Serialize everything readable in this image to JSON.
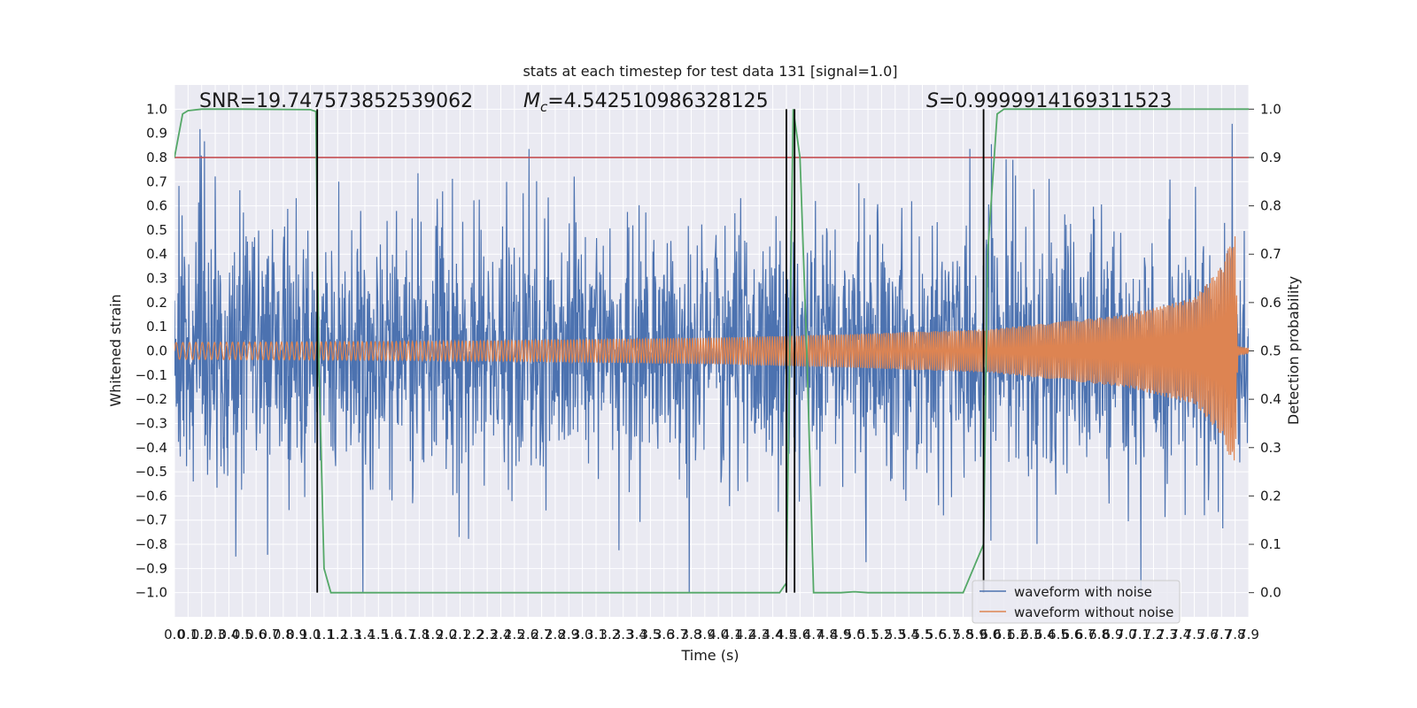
{
  "chart_data": {
    "type": "line",
    "title": "stats at each timestep for test data 131 [signal=1.0]",
    "xlabel": "Time (s)",
    "ylabel_left": "Whitened strain",
    "ylabel_right": "Detection probability",
    "xlim": [
      0.0,
      7.9
    ],
    "ylim_left": [
      -1.1,
      1.1
    ],
    "ylim_right": [
      -0.05,
      1.05
    ],
    "x_ticks": [
      "0.0",
      "0.1",
      "0.2",
      "0.3",
      "0.4",
      "0.5",
      "0.6",
      "0.7",
      "0.8",
      "0.9",
      "1.0",
      "1.1",
      "1.2",
      "1.3",
      "1.4",
      "1.5",
      "1.6",
      "1.7",
      "1.8",
      "1.9",
      "2.0",
      "2.1",
      "2.2",
      "2.3",
      "2.4",
      "2.5",
      "2.6",
      "2.7",
      "2.8",
      "2.9",
      "3.0",
      "3.1",
      "3.2",
      "3.3",
      "3.4",
      "3.5",
      "3.6",
      "3.7",
      "3.8",
      "3.9",
      "4.0",
      "4.1",
      "4.2",
      "4.3",
      "4.4",
      "4.5",
      "4.6",
      "4.7",
      "4.8",
      "4.9",
      "5.0",
      "5.1",
      "5.2",
      "5.3",
      "5.4",
      "5.5",
      "5.6",
      "5.7",
      "5.8",
      "5.9",
      "6.0",
      "6.1",
      "6.2",
      "6.3",
      "6.4",
      "6.5",
      "6.6",
      "6.7",
      "6.8",
      "6.9",
      "7.0",
      "7.1",
      "7.2",
      "7.3",
      "7.4",
      "7.5",
      "7.6",
      "7.7",
      "7.8",
      "7.9"
    ],
    "y_ticks_left": [
      "1.0",
      "0.9",
      "0.8",
      "0.7",
      "0.6",
      "0.5",
      "0.4",
      "0.3",
      "0.2",
      "0.1",
      "0.0",
      "−0.1",
      "−0.2",
      "−0.3",
      "−0.4",
      "−0.5",
      "−0.6",
      "−0.7",
      "−0.8",
      "−0.9",
      "−1.0"
    ],
    "y_ticks_right": [
      "1.0",
      "0.9",
      "0.8",
      "0.7",
      "0.6",
      "0.5",
      "0.4",
      "0.3",
      "0.2",
      "0.1",
      "0.0"
    ],
    "annotations": {
      "snr": "SNR=19.747573852539062",
      "mc": "=4.542510986328125",
      "mc_symbol": "M",
      "mc_sub": "c",
      "s": "=0.9999914169311523",
      "s_symbol": "S"
    },
    "threshold": 0.9,
    "vertical_lines": [
      1.05,
      4.5,
      4.56,
      5.95
    ],
    "series": [
      {
        "name": "waveform with noise",
        "color": "#4c72b0",
        "noise_amplitude": 0.45,
        "peak_range": [
          -1.0,
          0.99
        ]
      },
      {
        "name": "waveform without noise",
        "color": "#dd8452",
        "envelope": {
          "x": [
            0.0,
            2.0,
            4.0,
            5.0,
            6.0,
            7.0,
            7.5,
            7.7,
            7.8,
            7.82,
            7.9
          ],
          "y": [
            0.035,
            0.04,
            0.055,
            0.07,
            0.09,
            0.15,
            0.22,
            0.35,
            0.5,
            0.02,
            0.01
          ]
        }
      },
      {
        "name": "Detection probability",
        "color": "#55a868",
        "axis": "right",
        "x": [
          0.0,
          0.06,
          0.1,
          0.2,
          0.5,
          1.0,
          1.04,
          1.06,
          1.1,
          1.15,
          1.5,
          2.0,
          3.0,
          4.0,
          4.45,
          4.5,
          4.53,
          4.55,
          4.6,
          4.65,
          4.7,
          4.8,
          4.9,
          5.0,
          5.1,
          5.5,
          5.8,
          5.95,
          5.98,
          6.05,
          6.1,
          6.2,
          7.0,
          7.9
        ],
        "y": [
          0.9,
          0.99,
          0.997,
          1.0,
          1.0,
          0.999,
          0.995,
          0.5,
          0.05,
          0.0,
          0.0,
          0.0,
          0.0,
          0.0,
          0.0,
          0.02,
          0.6,
          1.0,
          0.9,
          0.5,
          0.0,
          0.0,
          0.0,
          0.002,
          0.0,
          0.0,
          0.0,
          0.1,
          0.7,
          0.99,
          1.0,
          1.0,
          1.0,
          1.0
        ]
      },
      {
        "name": "threshold",
        "color": "#c44e52",
        "axis": "right",
        "x": [
          0.0,
          7.9
        ],
        "y": [
          0.9,
          0.9
        ]
      }
    ],
    "legend": {
      "position": "lower-right",
      "entries": [
        "waveform with noise",
        "waveform without noise"
      ]
    },
    "grid": true,
    "colors": {
      "background": "#eaeaf2",
      "grid": "#ffffff",
      "noise": "#4c72b0",
      "clean": "#dd8452",
      "prob": "#55a868",
      "threshold": "#c44e52",
      "vline": "#000000"
    }
  }
}
